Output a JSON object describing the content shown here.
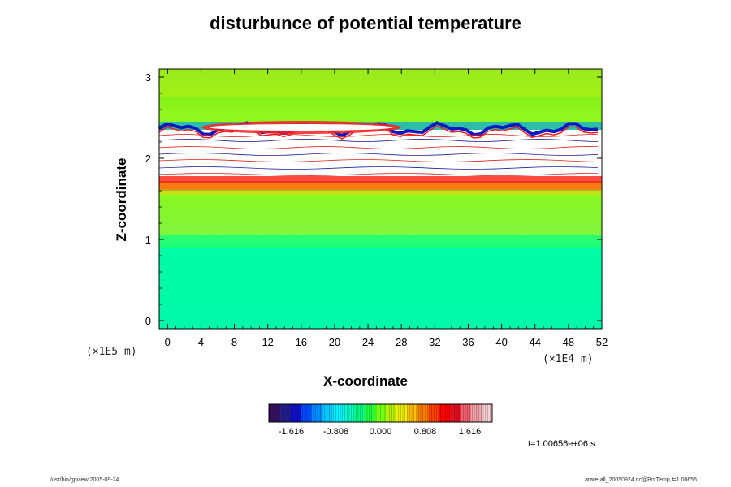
{
  "chart_data": {
    "type": "heatmap",
    "title": "disturbunce of potential temperature",
    "xlabel": "X-coordinate",
    "ylabel": "Z-coordinate",
    "x_scale": "(×1E4 m)",
    "y_scale": "(×1E5 m)",
    "xlim": [
      -1,
      52
    ],
    "ylim": [
      -0.1,
      3.1
    ],
    "x_ticks": [
      0,
      4,
      8,
      12,
      16,
      20,
      24,
      28,
      32,
      36,
      40,
      44,
      48,
      52
    ],
    "y_ticks": [
      0,
      1,
      2,
      3
    ],
    "colorbar": {
      "tick_values": [
        -1.616,
        -0.808,
        0.0,
        0.808,
        1.616
      ],
      "tick_labels": [
        "-1.616",
        "-0.808",
        "0.000",
        "0.808",
        "1.616"
      ],
      "colors": [
        "#3a1060",
        "#22208c",
        "#1010c8",
        "#0048ff",
        "#0088ff",
        "#00c8ff",
        "#00f0ff",
        "#00ffcc",
        "#00ff88",
        "#20ff40",
        "#70ff10",
        "#b8f000",
        "#f0f000",
        "#ffc000",
        "#ff8000",
        "#ff4000",
        "#ff0000",
        "#e01020",
        "#f06070",
        "#f0a0a8",
        "#f8d0d0"
      ]
    },
    "field_bands": [
      {
        "z_range": [
          -0.1,
          0.9
        ],
        "approx_value": -0.45
      },
      {
        "z_range": [
          0.9,
          1.05
        ],
        "approx_value": -0.2
      },
      {
        "z_range": [
          1.05,
          1.3
        ],
        "approx_value": 0.1
      },
      {
        "z_range": [
          1.3,
          1.6
        ],
        "approx_value": 0.25
      },
      {
        "z_range": [
          1.6,
          1.72
        ],
        "approx_value": 1.3
      },
      {
        "z_range": [
          1.72,
          2.35
        ],
        "approx_value": 2.5
      },
      {
        "z_range": [
          2.35,
          2.45
        ],
        "approx_value": -1.2
      },
      {
        "z_range": [
          2.45,
          2.75
        ],
        "approx_value": 0.2
      },
      {
        "z_range": [
          2.75,
          3.1
        ],
        "approx_value": 0.35
      }
    ]
  },
  "time_label": "t=1.00656e+06 s",
  "footer_left": "/usr/bin/gpview 2005-09-24",
  "footer_right": "arare-all_20050924.nc@PotTemp,t=1.00656"
}
